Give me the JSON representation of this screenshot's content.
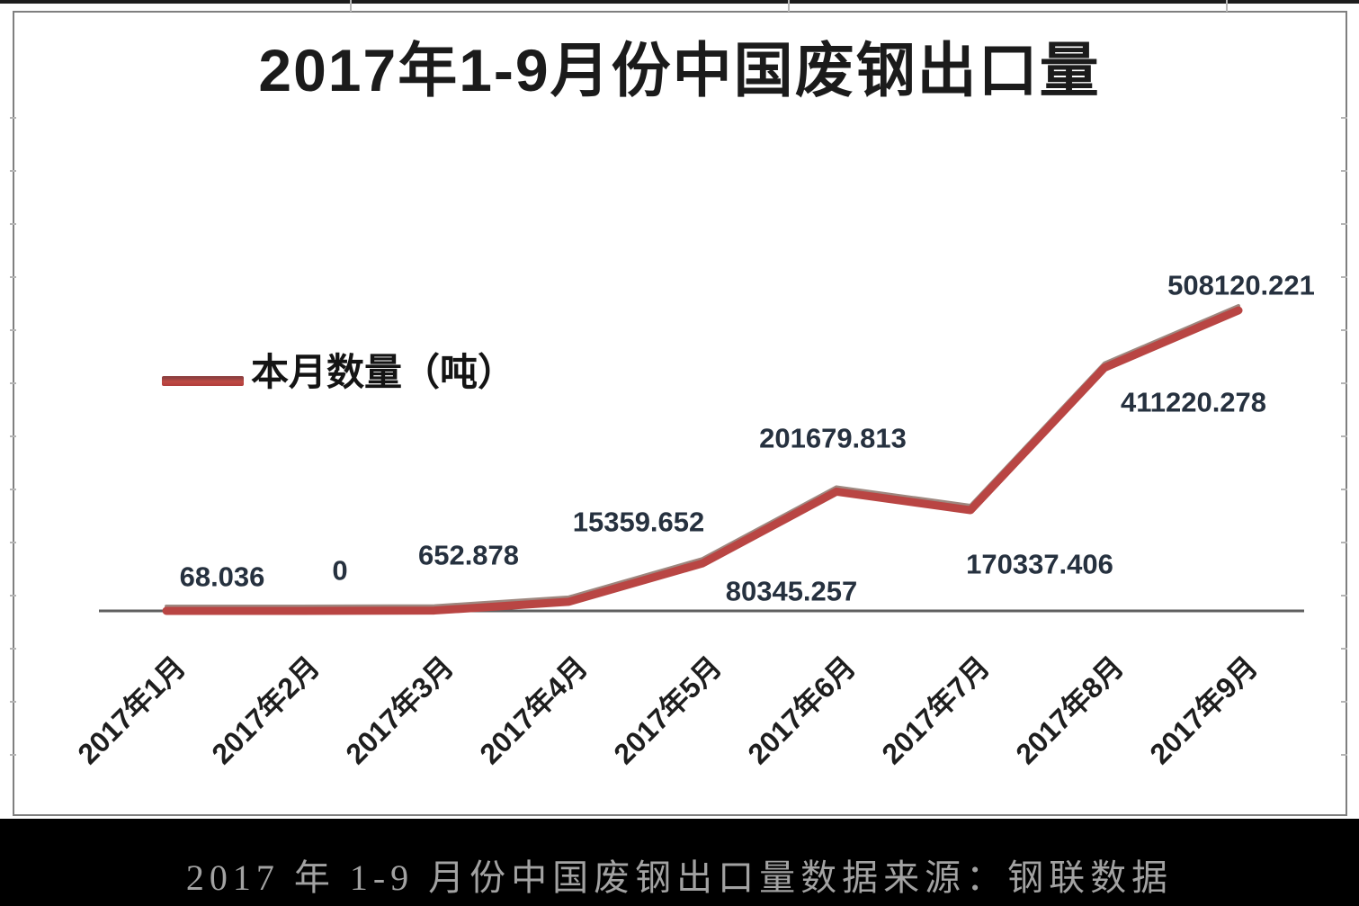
{
  "chart_data": {
    "type": "line",
    "title": "2017年1-9月份中国废钢出口量",
    "categories": [
      "2017年1月",
      "2017年2月",
      "2017年3月",
      "2017年4月",
      "2017年5月",
      "2017年6月",
      "2017年7月",
      "2017年8月",
      "2017年9月"
    ],
    "series": [
      {
        "name": "本月数量（吨）",
        "values": [
          68.036,
          0,
          652.878,
          15359.652,
          80345.257,
          201679.813,
          170337.406,
          411220.278,
          508120.221
        ]
      }
    ],
    "data_labels": [
      "68.036",
      "0",
      "652.878",
      "15359.652",
      "80345.257",
      "201679.813",
      "170337.406",
      "411220.278",
      "508120.221"
    ],
    "ylim": [
      0,
      508120.221
    ],
    "grid": false,
    "legend_position": "inside-top-left",
    "line_color": "#b94543",
    "line_shadow_color": "#7d6055",
    "axis_color": "#5f5f5f",
    "label_color": "#26313f"
  },
  "caption": "2017 年 1-9 月份中国废钢出口量数据来源：钢联数据"
}
